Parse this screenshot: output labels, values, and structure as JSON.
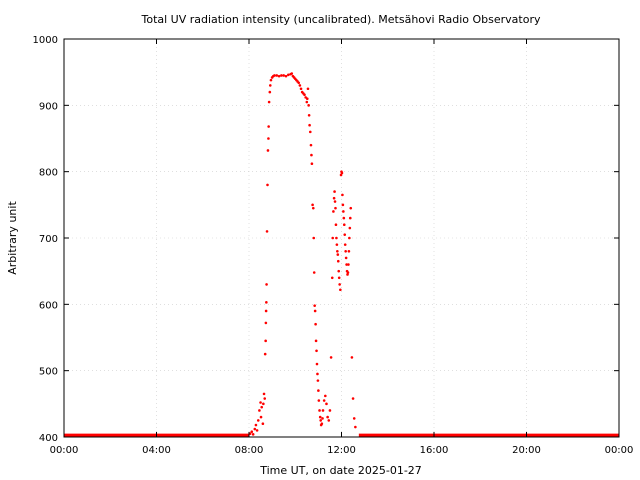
{
  "chart_data": {
    "type": "scatter",
    "title": "Total UV radiation intensity (uncalibrated). Metsähovi Radio Observatory",
    "xlabel": "Time UT, on date 2025-01-27",
    "ylabel": "Arbitrary unit",
    "xlim": [
      0,
      24
    ],
    "ylim": [
      400,
      1000
    ],
    "x_unit": "hours UT",
    "x_ticks": [
      {
        "value": 0,
        "label": "00:00"
      },
      {
        "value": 4,
        "label": "04:00"
      },
      {
        "value": 8,
        "label": "08:00"
      },
      {
        "value": 12,
        "label": "12:00"
      },
      {
        "value": 16,
        "label": "16:00"
      },
      {
        "value": 20,
        "label": "20:00"
      },
      {
        "value": 24,
        "label": "00:00"
      }
    ],
    "y_ticks": [
      400,
      500,
      600,
      700,
      800,
      900,
      1000
    ],
    "grid": true,
    "marker_color": "#ff0000",
    "series": [
      {
        "baseline": {
          "x_start": 0,
          "x_end": 8.0,
          "y": 402
        },
        "baseline_end": {
          "x_start": 12.75,
          "x_end": 24,
          "y": 402
        },
        "points": [
          [
            8.05,
            405
          ],
          [
            8.12,
            408
          ],
          [
            8.18,
            404
          ],
          [
            8.25,
            412
          ],
          [
            8.3,
            418
          ],
          [
            8.35,
            410
          ],
          [
            8.4,
            425
          ],
          [
            8.45,
            440
          ],
          [
            8.5,
            452
          ],
          [
            8.52,
            430
          ],
          [
            8.55,
            445
          ],
          [
            8.6,
            420
          ],
          [
            8.62,
            450
          ],
          [
            8.65,
            465
          ],
          [
            8.68,
            458
          ],
          [
            8.7,
            525
          ],
          [
            8.72,
            545
          ],
          [
            8.73,
            572
          ],
          [
            8.74,
            590
          ],
          [
            8.75,
            603
          ],
          [
            8.76,
            630
          ],
          [
            8.78,
            710
          ],
          [
            8.8,
            780
          ],
          [
            8.82,
            832
          ],
          [
            8.84,
            850
          ],
          [
            8.85,
            868
          ],
          [
            8.87,
            905
          ],
          [
            8.9,
            920
          ],
          [
            8.92,
            930
          ],
          [
            8.95,
            938
          ],
          [
            9.0,
            942
          ],
          [
            9.05,
            944
          ],
          [
            9.1,
            945
          ],
          [
            9.2,
            945
          ],
          [
            9.3,
            944
          ],
          [
            9.4,
            945
          ],
          [
            9.5,
            945
          ],
          [
            9.6,
            944
          ],
          [
            9.7,
            946
          ],
          [
            9.8,
            947
          ],
          [
            9.85,
            948
          ],
          [
            9.9,
            944
          ],
          [
            9.95,
            942
          ],
          [
            10.0,
            940
          ],
          [
            10.05,
            938
          ],
          [
            10.1,
            936
          ],
          [
            10.15,
            934
          ],
          [
            10.2,
            930
          ],
          [
            10.25,
            925
          ],
          [
            10.3,
            920
          ],
          [
            10.35,
            918
          ],
          [
            10.4,
            916
          ],
          [
            10.45,
            912
          ],
          [
            10.5,
            905
          ],
          [
            10.52,
            910
          ],
          [
            10.55,
            925
          ],
          [
            10.58,
            900
          ],
          [
            10.6,
            885
          ],
          [
            10.62,
            870
          ],
          [
            10.65,
            860
          ],
          [
            10.68,
            840
          ],
          [
            10.7,
            825
          ],
          [
            10.72,
            812
          ],
          [
            10.75,
            750
          ],
          [
            10.78,
            745
          ],
          [
            10.8,
            700
          ],
          [
            10.82,
            648
          ],
          [
            10.84,
            598
          ],
          [
            10.86,
            590
          ],
          [
            10.88,
            570
          ],
          [
            10.9,
            545
          ],
          [
            10.92,
            530
          ],
          [
            10.94,
            510
          ],
          [
            10.96,
            495
          ],
          [
            10.98,
            485
          ],
          [
            11.0,
            470
          ],
          [
            11.02,
            455
          ],
          [
            11.05,
            440
          ],
          [
            11.08,
            430
          ],
          [
            11.1,
            425
          ],
          [
            11.12,
            418
          ],
          [
            11.15,
            420
          ],
          [
            11.18,
            428
          ],
          [
            11.2,
            440
          ],
          [
            11.25,
            455
          ],
          [
            11.3,
            462
          ],
          [
            11.35,
            450
          ],
          [
            11.4,
            430
          ],
          [
            11.45,
            425
          ],
          [
            11.5,
            440
          ],
          [
            11.55,
            520
          ],
          [
            11.6,
            640
          ],
          [
            11.62,
            700
          ],
          [
            11.65,
            740
          ],
          [
            11.68,
            760
          ],
          [
            11.7,
            770
          ],
          [
            11.72,
            755
          ],
          [
            11.74,
            745
          ],
          [
            11.76,
            720
          ],
          [
            11.78,
            700
          ],
          [
            11.8,
            690
          ],
          [
            11.82,
            680
          ],
          [
            11.84,
            675
          ],
          [
            11.86,
            665
          ],
          [
            11.88,
            650
          ],
          [
            11.9,
            640
          ],
          [
            11.92,
            630
          ],
          [
            11.95,
            622
          ],
          [
            11.98,
            795
          ],
          [
            12.0,
            800
          ],
          [
            12.02,
            798
          ],
          [
            12.04,
            765
          ],
          [
            12.06,
            750
          ],
          [
            12.08,
            740
          ],
          [
            12.1,
            730
          ],
          [
            12.12,
            720
          ],
          [
            12.14,
            705
          ],
          [
            12.16,
            690
          ],
          [
            12.18,
            680
          ],
          [
            12.2,
            670
          ],
          [
            12.22,
            660
          ],
          [
            12.24,
            650
          ],
          [
            12.26,
            645
          ],
          [
            12.28,
            648
          ],
          [
            12.3,
            660
          ],
          [
            12.32,
            680
          ],
          [
            12.34,
            700
          ],
          [
            12.36,
            715
          ],
          [
            12.38,
            730
          ],
          [
            12.4,
            745
          ],
          [
            12.45,
            520
          ],
          [
            12.5,
            458
          ],
          [
            12.55,
            428
          ],
          [
            12.6,
            415
          ]
        ]
      }
    ]
  }
}
